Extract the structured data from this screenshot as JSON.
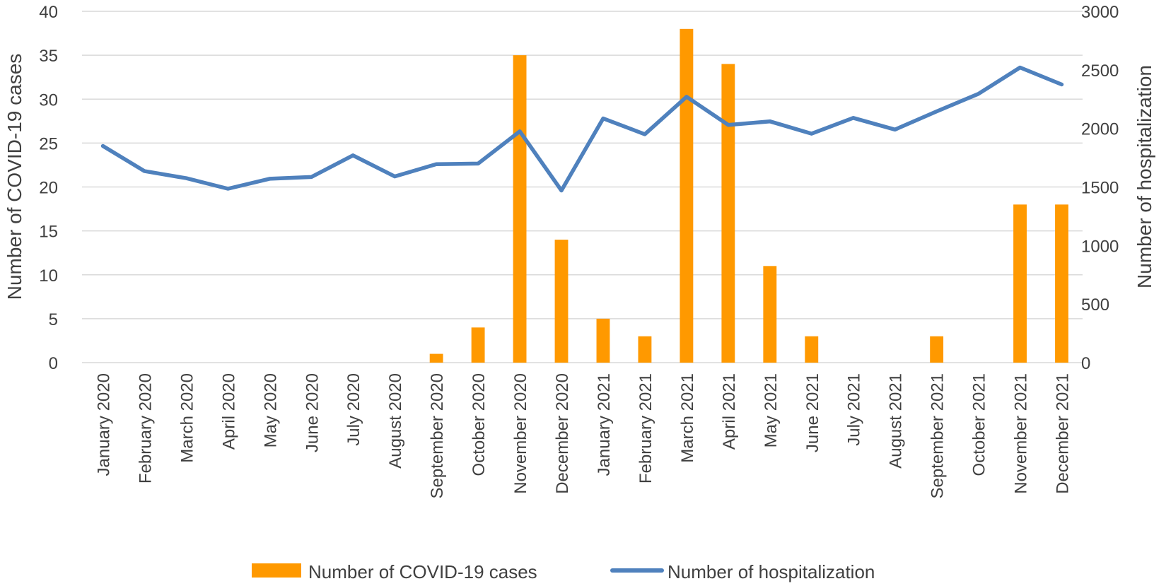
{
  "chart_data": {
    "type": "bar+line",
    "categories": [
      "January 2020",
      "February 2020",
      "March 2020",
      "April 2020",
      "May 2020",
      "June 2020",
      "July 2020",
      "August 2020",
      "September 2020",
      "October 2020",
      "November 2020",
      "December 2020",
      "January 2021",
      "February 2021",
      "March 2021",
      "April 2021",
      "May 2021",
      "June 2021",
      "July 2021",
      "August 2021",
      "September 2021",
      "October 2021",
      "November 2021",
      "December 2021"
    ],
    "series": [
      {
        "name": "Number of COVID-19 cases",
        "type": "bar",
        "axis": "left",
        "color": "#FF9900",
        "values": [
          0,
          0,
          0,
          0,
          0,
          0,
          0,
          0,
          1,
          4,
          35,
          14,
          5,
          3,
          38,
          34,
          11,
          3,
          0,
          0,
          3,
          0,
          18,
          18
        ]
      },
      {
        "name": "Number of hospitalization",
        "type": "line",
        "axis": "right",
        "color": "#4F81BD",
        "values": [
          1850,
          1635,
          1575,
          1485,
          1570,
          1585,
          1770,
          1590,
          1695,
          1700,
          1975,
          1470,
          2085,
          1950,
          2270,
          2030,
          2060,
          1955,
          2090,
          1990,
          2145,
          2295,
          2520,
          2375
        ]
      }
    ],
    "ylabel": "Number of COVID-19 cases",
    "y2label": "Number of hospitalization",
    "ylim": [
      0,
      40
    ],
    "y2lim": [
      0,
      3000
    ],
    "yticks": [
      "0",
      "5",
      "10",
      "15",
      "20",
      "25",
      "30",
      "35",
      "40"
    ],
    "y2ticks": [
      "0",
      "500",
      "1000",
      "1500",
      "2000",
      "2500",
      "3000"
    ],
    "grid": true,
    "legend_position": "bottom"
  }
}
